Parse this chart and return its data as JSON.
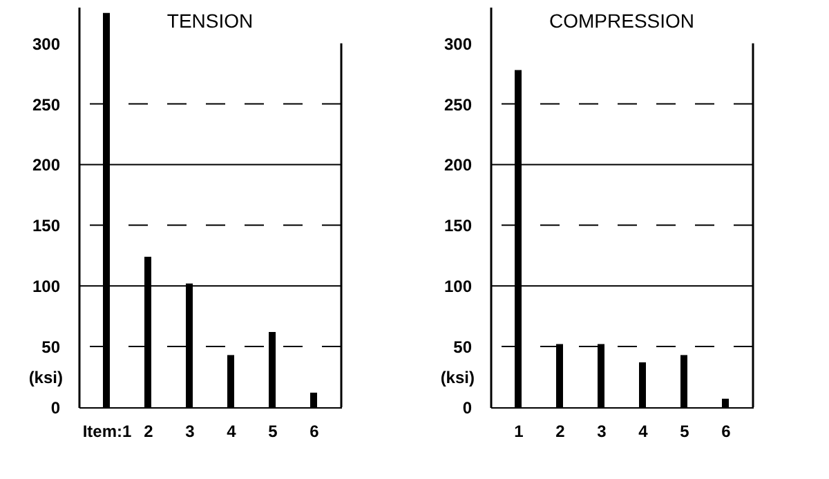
{
  "chart_data": [
    {
      "type": "bar",
      "title": "TENSION",
      "ylabel": "(ksi)",
      "categories": [
        "Item:1",
        "2",
        "3",
        "4",
        "5",
        "6"
      ],
      "values": [
        325,
        124,
        102,
        43,
        62,
        12
      ],
      "color": "#000000",
      "ylim": [
        0,
        330
      ],
      "yticks": [
        0,
        50,
        100,
        150,
        200,
        250,
        300
      ],
      "grid": false,
      "ref_lines": [
        {
          "axis": "y",
          "value": 50,
          "line_style": "dashed"
        },
        {
          "axis": "y",
          "value": 100,
          "line_style": "solid"
        },
        {
          "axis": "y",
          "value": 150,
          "line_style": "dashed"
        },
        {
          "axis": "y",
          "value": 200,
          "line_style": "solid"
        },
        {
          "axis": "y",
          "value": 250,
          "line_style": "dashed"
        }
      ]
    },
    {
      "type": "bar",
      "title": "COMPRESSION",
      "ylabel": "(ksi)",
      "categories": [
        "1",
        "2",
        "3",
        "4",
        "5",
        "6"
      ],
      "values": [
        278,
        52,
        52,
        37,
        43,
        7
      ],
      "color": "#000000",
      "ylim": [
        0,
        330
      ],
      "yticks": [
        0,
        50,
        100,
        150,
        200,
        250,
        300
      ],
      "grid": false,
      "ref_lines": [
        {
          "axis": "y",
          "value": 50,
          "line_style": "dashed"
        },
        {
          "axis": "y",
          "value": 100,
          "line_style": "solid"
        },
        {
          "axis": "y",
          "value": 150,
          "line_style": "dashed"
        },
        {
          "axis": "y",
          "value": 200,
          "line_style": "solid"
        },
        {
          "axis": "y",
          "value": 250,
          "line_style": "dashed"
        }
      ]
    }
  ]
}
